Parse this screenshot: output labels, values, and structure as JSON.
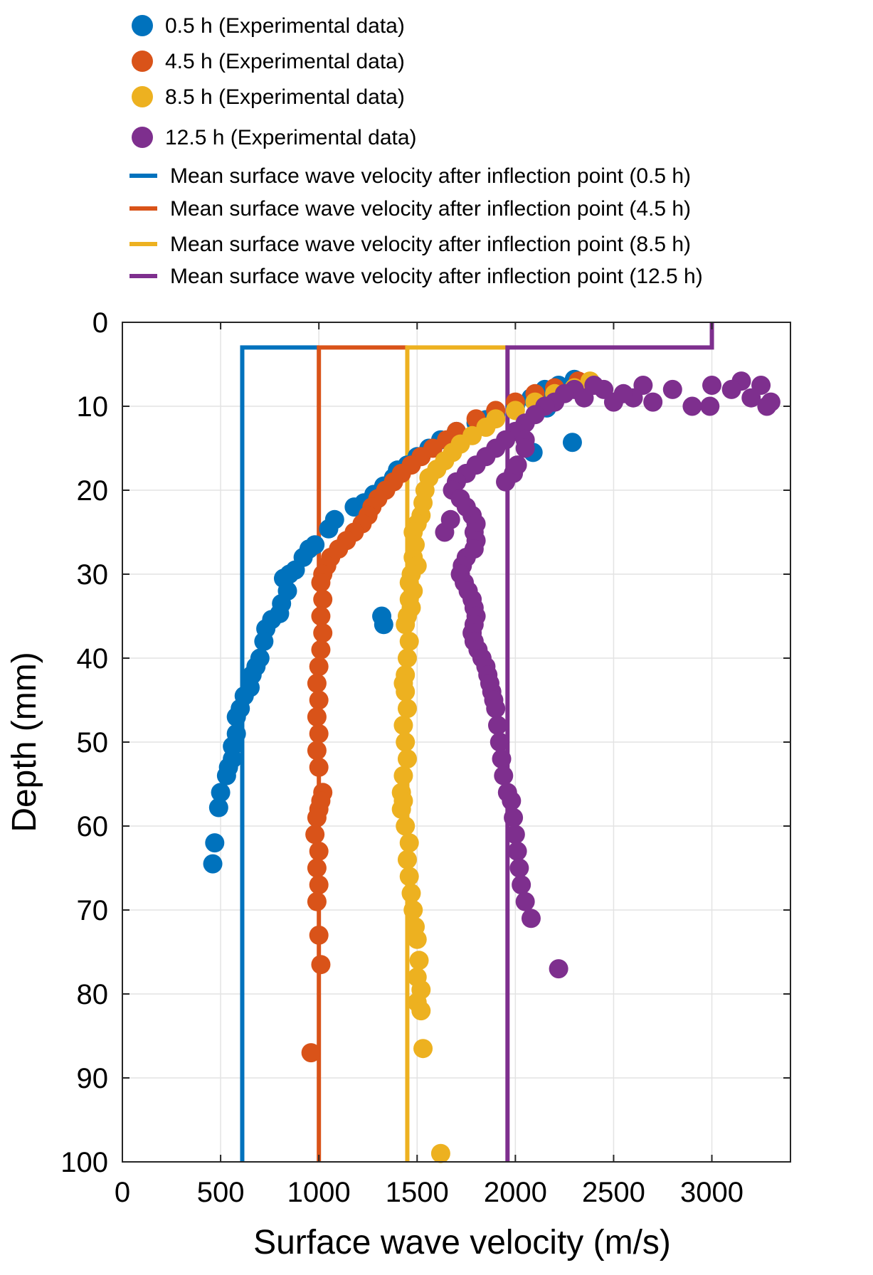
{
  "chart_data": {
    "type": "scatter",
    "title": "",
    "xlabel": "Surface wave velocity (m/s)",
    "ylabel": "Depth (mm)",
    "xlim": [
      0,
      3400
    ],
    "ylim": [
      0,
      100
    ],
    "y_reversed": true,
    "grid": true,
    "legend_placement": "top (above plot)",
    "x_ticks": [
      0,
      500,
      1000,
      1500,
      2000,
      2500,
      3000
    ],
    "y_ticks": [
      0,
      10,
      20,
      30,
      40,
      50,
      60,
      70,
      80,
      90,
      100
    ],
    "colors": {
      "s05": "#0072BD",
      "s45": "#D95319",
      "s85": "#EDB120",
      "s125": "#7E2F8E"
    },
    "series": [
      {
        "name": "0.5 h (Experimental data)",
        "kind": "scatter",
        "color": "#0072BD",
        "points": [
          [
            2300,
            6.8
          ],
          [
            2220,
            7.5
          ],
          [
            2150,
            8
          ],
          [
            2080,
            9
          ],
          [
            2160,
            10.2
          ],
          [
            2000,
            10
          ],
          [
            1900,
            11
          ],
          [
            1850,
            11.6
          ],
          [
            1800,
            12
          ],
          [
            1700,
            13
          ],
          [
            1620,
            14
          ],
          [
            1560,
            15
          ],
          [
            1500,
            16
          ],
          [
            1450,
            17
          ],
          [
            1400,
            17.6
          ],
          [
            1380,
            18.5
          ],
          [
            1330,
            19.5
          ],
          [
            1280,
            20.5
          ],
          [
            1230,
            21.5
          ],
          [
            1180,
            22
          ],
          [
            1080,
            23.5
          ],
          [
            1050,
            24.6
          ],
          [
            980,
            26.5
          ],
          [
            950,
            27
          ],
          [
            920,
            28
          ],
          [
            880,
            29.5
          ],
          [
            850,
            30
          ],
          [
            820,
            30.5
          ],
          [
            840,
            32
          ],
          [
            810,
            33.5
          ],
          [
            800,
            34.7
          ],
          [
            760,
            35.4
          ],
          [
            730,
            36.5
          ],
          [
            720,
            38
          ],
          [
            700,
            40
          ],
          [
            680,
            41
          ],
          [
            660,
            42
          ],
          [
            650,
            43.5
          ],
          [
            620,
            44.5
          ],
          [
            600,
            46
          ],
          [
            580,
            47
          ],
          [
            580,
            49
          ],
          [
            560,
            50.5
          ],
          [
            560,
            52
          ],
          [
            540,
            53
          ],
          [
            530,
            54
          ],
          [
            500,
            56
          ],
          [
            490,
            57.8
          ],
          [
            470,
            62
          ],
          [
            460,
            64.5
          ],
          [
            1320,
            35
          ],
          [
            1330,
            36
          ],
          [
            2290,
            14.3
          ],
          [
            2090,
            15.5
          ]
        ]
      },
      {
        "name": "4.5 h (Experimental data)",
        "kind": "scatter",
        "color": "#D95319",
        "points": [
          [
            2320,
            7
          ],
          [
            2200,
            7.8
          ],
          [
            2100,
            8.5
          ],
          [
            2000,
            9.5
          ],
          [
            1900,
            10.5
          ],
          [
            1800,
            11.5
          ],
          [
            1700,
            13
          ],
          [
            1650,
            14
          ],
          [
            1580,
            15
          ],
          [
            1520,
            16
          ],
          [
            1470,
            17
          ],
          [
            1420,
            18
          ],
          [
            1380,
            19
          ],
          [
            1340,
            20
          ],
          [
            1300,
            21
          ],
          [
            1270,
            22
          ],
          [
            1250,
            23
          ],
          [
            1220,
            24
          ],
          [
            1180,
            25
          ],
          [
            1140,
            26
          ],
          [
            1100,
            27
          ],
          [
            1060,
            28
          ],
          [
            1040,
            29
          ],
          [
            1020,
            30
          ],
          [
            1010,
            31
          ],
          [
            1020,
            33
          ],
          [
            1010,
            35
          ],
          [
            1020,
            37
          ],
          [
            1010,
            39
          ],
          [
            1000,
            41
          ],
          [
            990,
            43
          ],
          [
            1000,
            45
          ],
          [
            990,
            47
          ],
          [
            1000,
            49
          ],
          [
            990,
            51
          ],
          [
            1000,
            53
          ],
          [
            1020,
            56
          ],
          [
            1010,
            57
          ],
          [
            1000,
            58
          ],
          [
            990,
            59
          ],
          [
            980,
            61
          ],
          [
            1000,
            63
          ],
          [
            990,
            65
          ],
          [
            1000,
            67
          ],
          [
            990,
            69
          ],
          [
            1000,
            73
          ],
          [
            1010,
            76.5
          ],
          [
            960,
            87
          ]
        ]
      },
      {
        "name": "8.5 h (Experimental data)",
        "kind": "scatter",
        "color": "#EDB120",
        "points": [
          [
            2380,
            7
          ],
          [
            2300,
            7.8
          ],
          [
            2200,
            8.5
          ],
          [
            2100,
            9.5
          ],
          [
            2000,
            10.5
          ],
          [
            1900,
            11.5
          ],
          [
            1850,
            12.5
          ],
          [
            1780,
            13.5
          ],
          [
            1720,
            14.5
          ],
          [
            1680,
            15.5
          ],
          [
            1640,
            16.5
          ],
          [
            1600,
            17.5
          ],
          [
            1560,
            18.5
          ],
          [
            1540,
            20
          ],
          [
            1530,
            21.5
          ],
          [
            1520,
            23
          ],
          [
            1500,
            24
          ],
          [
            1480,
            25
          ],
          [
            1490,
            26.5
          ],
          [
            1480,
            28
          ],
          [
            1500,
            29
          ],
          [
            1470,
            30
          ],
          [
            1460,
            31
          ],
          [
            1480,
            32
          ],
          [
            1460,
            33
          ],
          [
            1470,
            34
          ],
          [
            1450,
            35
          ],
          [
            1440,
            36
          ],
          [
            1460,
            38
          ],
          [
            1450,
            40
          ],
          [
            1440,
            42
          ],
          [
            1430,
            43
          ],
          [
            1440,
            44
          ],
          [
            1450,
            46
          ],
          [
            1430,
            48
          ],
          [
            1440,
            50
          ],
          [
            1450,
            52
          ],
          [
            1430,
            54
          ],
          [
            1420,
            56
          ],
          [
            1430,
            57
          ],
          [
            1420,
            58
          ],
          [
            1440,
            60
          ],
          [
            1460,
            62
          ],
          [
            1450,
            64
          ],
          [
            1460,
            66
          ],
          [
            1470,
            68
          ],
          [
            1480,
            70
          ],
          [
            1490,
            72
          ],
          [
            1500,
            73.5
          ],
          [
            1510,
            76
          ],
          [
            1500,
            78
          ],
          [
            1520,
            79.5
          ],
          [
            1500,
            81
          ],
          [
            1520,
            82
          ],
          [
            1530,
            86.5
          ],
          [
            1620,
            99
          ]
        ]
      },
      {
        "name": "12.5 h (Experimental data)",
        "kind": "scatter",
        "color": "#7E2F8E",
        "points": [
          [
            3300,
            9.5
          ],
          [
            3280,
            10
          ],
          [
            3250,
            7.5
          ],
          [
            3200,
            9
          ],
          [
            3150,
            7
          ],
          [
            3100,
            8
          ],
          [
            3000,
            7.5
          ],
          [
            2990,
            10
          ],
          [
            2900,
            10
          ],
          [
            2800,
            8
          ],
          [
            2700,
            9.5
          ],
          [
            2650,
            7.5
          ],
          [
            2600,
            9
          ],
          [
            2550,
            8.5
          ],
          [
            2500,
            9.5
          ],
          [
            2450,
            8
          ],
          [
            2400,
            7.5
          ],
          [
            2350,
            9
          ],
          [
            2300,
            8
          ],
          [
            2250,
            8.5
          ],
          [
            2200,
            9.5
          ],
          [
            2150,
            10
          ],
          [
            2100,
            11
          ],
          [
            2050,
            12
          ],
          [
            2000,
            13
          ],
          [
            1950,
            14
          ],
          [
            1900,
            15
          ],
          [
            1850,
            16
          ],
          [
            1800,
            17
          ],
          [
            1750,
            18
          ],
          [
            1700,
            19
          ],
          [
            1680,
            20
          ],
          [
            1720,
            21
          ],
          [
            1750,
            22
          ],
          [
            1780,
            23
          ],
          [
            1800,
            24
          ],
          [
            1790,
            25
          ],
          [
            1800,
            26
          ],
          [
            1790,
            27
          ],
          [
            1750,
            28
          ],
          [
            1730,
            29
          ],
          [
            1720,
            30
          ],
          [
            1740,
            31
          ],
          [
            1760,
            32
          ],
          [
            1780,
            33
          ],
          [
            1790,
            34
          ],
          [
            1800,
            35
          ],
          [
            1790,
            36
          ],
          [
            1780,
            37
          ],
          [
            1790,
            38
          ],
          [
            1810,
            39
          ],
          [
            1830,
            40
          ],
          [
            1850,
            41
          ],
          [
            1860,
            42
          ],
          [
            1870,
            43
          ],
          [
            1880,
            44
          ],
          [
            1890,
            45
          ],
          [
            1900,
            46
          ],
          [
            1910,
            48
          ],
          [
            1920,
            50
          ],
          [
            1930,
            52
          ],
          [
            1940,
            54
          ],
          [
            1960,
            56
          ],
          [
            1980,
            57
          ],
          [
            1990,
            59
          ],
          [
            2000,
            61
          ],
          [
            2010,
            63
          ],
          [
            2020,
            65
          ],
          [
            2030,
            67
          ],
          [
            2050,
            69
          ],
          [
            2080,
            71
          ],
          [
            2220,
            77
          ],
          [
            1640,
            25
          ],
          [
            1670,
            23.5
          ],
          [
            2050,
            14
          ],
          [
            2050,
            15
          ],
          [
            1950,
            19
          ],
          [
            1990,
            18
          ],
          [
            2010,
            17
          ]
        ]
      },
      {
        "name": "Mean surface wave velocity after inflection point (0.5 h)",
        "kind": "line",
        "color": "#0072BD",
        "points": [
          [
            610,
            100
          ],
          [
            610,
            3
          ],
          [
            1000,
            3
          ]
        ]
      },
      {
        "name": "Mean surface wave velocity after inflection point (4.5 h)",
        "kind": "line",
        "color": "#D95319",
        "points": [
          [
            1000,
            100
          ],
          [
            1000,
            3
          ],
          [
            1450,
            3
          ]
        ]
      },
      {
        "name": "Mean surface wave velocity after inflection point (8.5 h)",
        "kind": "line",
        "color": "#EDB120",
        "points": [
          [
            1450,
            100
          ],
          [
            1450,
            3
          ],
          [
            1960,
            3
          ]
        ]
      },
      {
        "name": "Mean surface wave velocity after inflection point (12.5 h)",
        "kind": "line",
        "color": "#7E2F8E",
        "points": [
          [
            1960,
            100
          ],
          [
            1960,
            3
          ],
          [
            3000,
            3
          ],
          [
            3000,
            0
          ]
        ]
      }
    ]
  }
}
